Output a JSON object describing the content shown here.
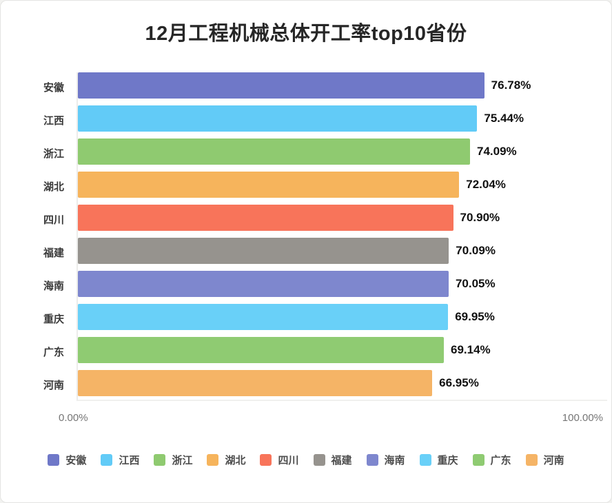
{
  "page": {
    "background": "#ffffff"
  },
  "chart_data": {
    "type": "bar",
    "orientation": "horizontal",
    "title": "12月工程机械总体开工率top10省份",
    "categories": [
      "安徽",
      "江西",
      "浙江",
      "湖北",
      "四川",
      "福建",
      "海南",
      "重庆",
      "广东",
      "河南"
    ],
    "values": [
      76.78,
      75.44,
      74.09,
      72.04,
      70.9,
      70.09,
      70.05,
      69.95,
      69.14,
      66.95
    ],
    "value_labels": [
      "76.78%",
      "75.44%",
      "74.09%",
      "72.04%",
      "70.90%",
      "70.09%",
      "70.05%",
      "69.95%",
      "69.14%",
      "66.95%"
    ],
    "bar_colors": [
      "#6F78C8",
      "#62CBF7",
      "#8FCA70",
      "#F6B45C",
      "#F8745A",
      "#96938E",
      "#7E87CE",
      "#69D0F8",
      "#8FCB72",
      "#F5B466"
    ],
    "xlim": [
      0,
      100
    ],
    "x_tick_labels": [
      "0.00%",
      "100.00%"
    ],
    "grid": false,
    "legend": {
      "position": "bottom",
      "entries": [
        "安徽",
        "江西",
        "浙江",
        "湖北",
        "四川",
        "福建",
        "海南",
        "重庆",
        "广东",
        "河南"
      ]
    }
  }
}
